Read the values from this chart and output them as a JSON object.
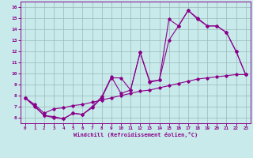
{
  "xlabel": "Windchill (Refroidissement éolien,°C)",
  "xlim": [
    -0.5,
    23.5
  ],
  "ylim": [
    5.5,
    16.5
  ],
  "xticks": [
    0,
    1,
    2,
    3,
    4,
    5,
    6,
    7,
    8,
    9,
    10,
    11,
    12,
    13,
    14,
    15,
    16,
    17,
    18,
    19,
    20,
    21,
    22,
    23
  ],
  "yticks": [
    6,
    7,
    8,
    9,
    10,
    11,
    12,
    13,
    14,
    15,
    16
  ],
  "line_color": "#8B008B",
  "bg_color": "#c8eaea",
  "grid_color": "#9ab8b8",
  "line1_x": [
    0,
    1,
    2,
    3,
    4,
    5,
    6,
    7,
    8,
    9,
    10,
    11,
    12,
    13,
    14,
    15,
    16,
    17,
    18,
    19,
    20,
    21,
    22,
    23
  ],
  "line1_y": [
    7.8,
    7.0,
    6.2,
    6.1,
    5.9,
    6.4,
    6.3,
    7.0,
    7.9,
    9.7,
    8.2,
    8.5,
    11.9,
    9.3,
    9.4,
    13.0,
    14.3,
    15.7,
    14.9,
    14.3,
    14.3,
    13.7,
    12.0,
    9.9
  ],
  "line2_x": [
    0,
    1,
    2,
    3,
    4,
    5,
    6,
    7,
    8,
    9,
    10,
    11,
    12,
    13,
    14,
    15,
    16,
    17,
    18,
    19,
    20,
    21,
    22,
    23
  ],
  "line2_y": [
    7.8,
    7.1,
    6.2,
    6.0,
    5.9,
    6.4,
    6.3,
    6.9,
    7.8,
    9.6,
    9.6,
    8.5,
    11.9,
    9.2,
    9.4,
    14.9,
    14.3,
    15.7,
    15.0,
    14.3,
    14.3,
    13.7,
    12.0,
    9.9
  ],
  "line3_x": [
    0,
    1,
    2,
    3,
    4,
    5,
    6,
    7,
    8,
    9,
    10,
    11,
    12,
    13,
    14,
    15,
    16,
    17,
    18,
    19,
    20,
    21,
    22,
    23
  ],
  "line3_y": [
    7.8,
    7.2,
    6.4,
    6.8,
    6.9,
    7.1,
    7.2,
    7.4,
    7.6,
    7.8,
    8.0,
    8.2,
    8.4,
    8.5,
    8.7,
    8.9,
    9.1,
    9.3,
    9.5,
    9.6,
    9.7,
    9.8,
    9.9,
    9.9
  ]
}
